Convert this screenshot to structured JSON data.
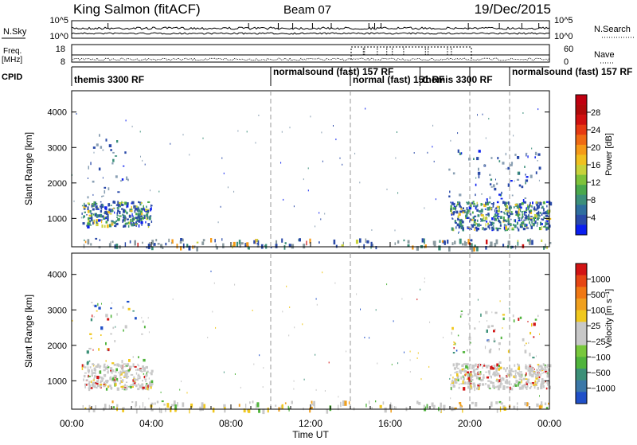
{
  "header": {
    "station": "King Salmon (fitACF)",
    "beam": "Beam 07",
    "date": "19/Dec/2015"
  },
  "aux_panels": {
    "nsky": {
      "label": "N.Sky",
      "ticks": [
        "10^5",
        "10^0"
      ]
    },
    "nsearch": {
      "label": "N.Search",
      "ticks": [
        "10^5",
        "10^0"
      ]
    },
    "freq": {
      "label_top": "Freq.",
      "label_unit": "[MHz]",
      "ticks": [
        "18",
        "8"
      ]
    },
    "nave": {
      "label": "Nave",
      "ticks": [
        "60",
        "0"
      ]
    },
    "cpid": {
      "label": "CPID",
      "programs": [
        {
          "name": "themis 3300 RF",
          "start_h": 0.0,
          "end_h": 10.0,
          "row": 1
        },
        {
          "name": "normalsound (fast) 157 RF",
          "start_h": 10.0,
          "end_h": 14.0,
          "row": 0
        },
        {
          "name": "normal (fast) 151 RF",
          "start_h": 14.0,
          "end_h": 17.5,
          "row": 1
        },
        {
          "name": "themis 3300 RF",
          "start_h": 17.5,
          "end_h": 20.0,
          "row": 1
        },
        {
          "name": "normalsound (fast) 157 RF",
          "start_h": 22.0,
          "end_h": 24.0,
          "row": 0
        }
      ],
      "boundaries_h": [
        10.0,
        14.0,
        17.5,
        20.0,
        22.0
      ]
    }
  },
  "chart_data": [
    {
      "type": "heatmap",
      "panel": "power",
      "ylabel": "Slant Range [km]",
      "yticks": [
        1000,
        2000,
        3000,
        4000
      ],
      "ylim": [
        200,
        4600
      ],
      "xlim": [
        0,
        24
      ],
      "colorbar": {
        "label": "Power [dB]",
        "ticks": [
          "28",
          "24",
          "20",
          "16",
          "12",
          "8",
          "4"
        ],
        "colors": [
          "#0a1ef0",
          "#2a4aa8",
          "#2f6e9e",
          "#3c8f7a",
          "#4aa84c",
          "#7ec23a",
          "#c8d23a",
          "#f0c020",
          "#f59a18",
          "#ef6b14",
          "#e63a12",
          "#d01010",
          "#b00a0a",
          "#c00010"
        ]
      },
      "regions": [
        {
          "t0": 0.5,
          "t1": 4.0,
          "r0": 800,
          "r1": 1500,
          "level": "high"
        },
        {
          "t0": 0.7,
          "t1": 2.8,
          "r0": 1500,
          "r1": 3400,
          "level": "low"
        },
        {
          "t0": 19.0,
          "t1": 24.0,
          "r0": 700,
          "r1": 1500,
          "level": "high"
        },
        {
          "t0": 18.8,
          "t1": 23.5,
          "r0": 1500,
          "r1": 3000,
          "level": "low"
        },
        {
          "t0": 0.5,
          "t1": 24.0,
          "r0": 200,
          "r1": 450,
          "level": "ground"
        }
      ]
    },
    {
      "type": "heatmap",
      "panel": "velocity",
      "ylabel": "Slant Range [km]",
      "yticks": [
        1000,
        2000,
        3000,
        4000
      ],
      "ylim": [
        200,
        4600
      ],
      "xlim": [
        0,
        24
      ],
      "xticks": [
        "00:00",
        "04:00",
        "08:00",
        "12:00",
        "16:00",
        "20:00",
        "00:00"
      ],
      "xlabel": "Time UT",
      "colorbar": {
        "label": "Velocity [m s⁻¹]",
        "ticks": [
          "1000",
          "500",
          "100",
          "25",
          "−25",
          "−100",
          "−500",
          "−1000"
        ],
        "colors": [
          "#2050c8",
          "#3c78a8",
          "#3c9078",
          "#50b43c",
          "#78c83c",
          "#c8c8c8",
          "#c8c8c8",
          "#f0c81e",
          "#f0a01e",
          "#f07814",
          "#e64614",
          "#d21414"
        ]
      },
      "regions": [
        {
          "t0": 0.5,
          "t1": 4.0,
          "r0": 800,
          "r1": 1500,
          "level": "gray"
        },
        {
          "t0": 0.7,
          "t1": 3.8,
          "r0": 1500,
          "r1": 3400,
          "level": "mixed"
        },
        {
          "t0": 19.0,
          "t1": 24.0,
          "r0": 800,
          "r1": 1500,
          "level": "gray"
        },
        {
          "t0": 19.0,
          "t1": 23.5,
          "r0": 1500,
          "r1": 3000,
          "level": "mixed"
        },
        {
          "t0": 0.5,
          "t1": 24.0,
          "r0": 200,
          "r1": 450,
          "level": "ground"
        }
      ]
    }
  ],
  "dashed_times_h": [
    10.0,
    14.0,
    20.0,
    22.0
  ]
}
